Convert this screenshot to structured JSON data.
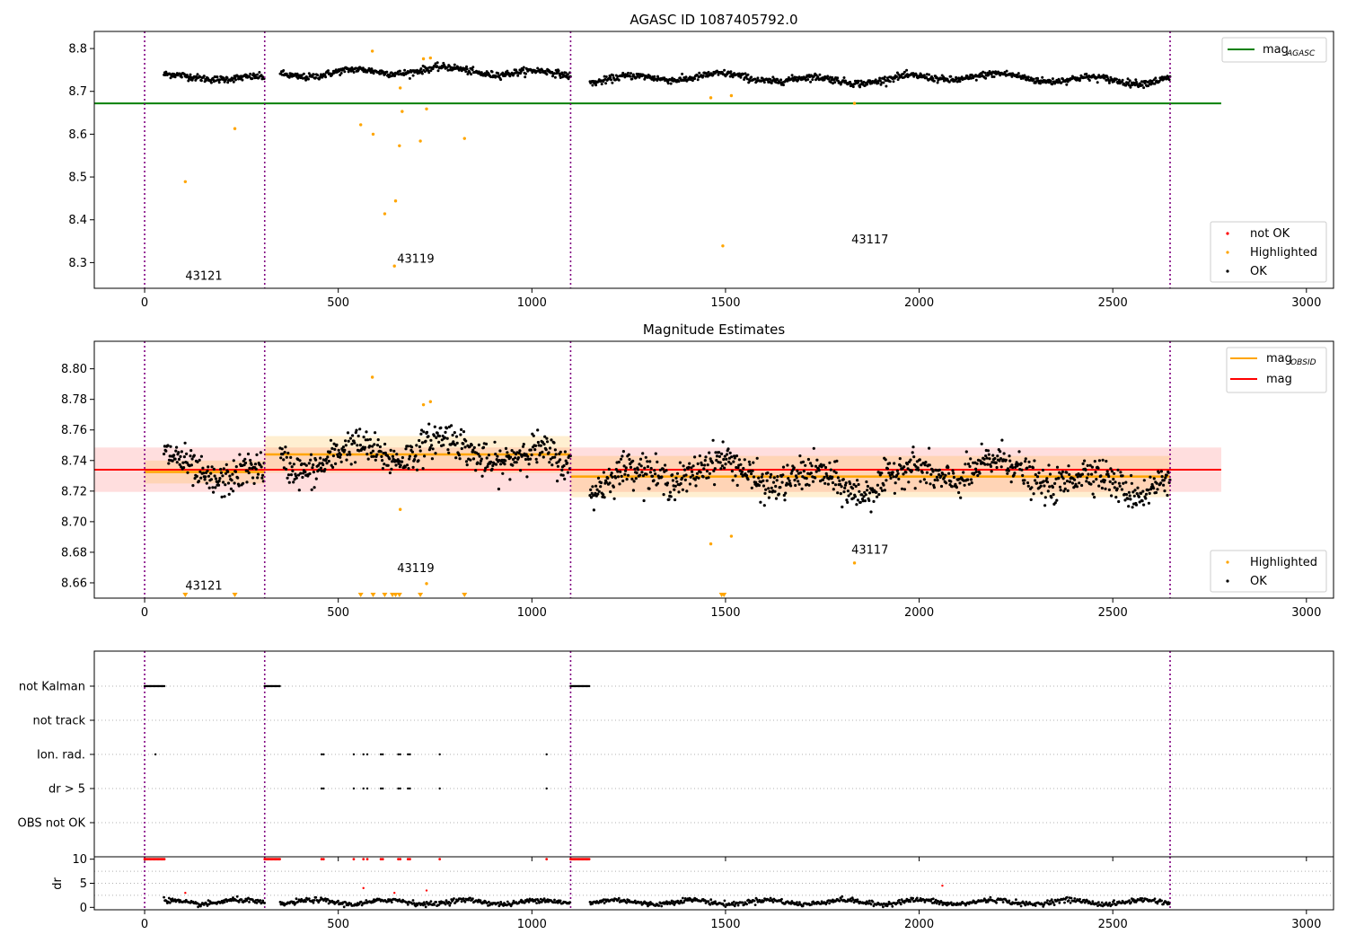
{
  "colors": {
    "ok": "#000000",
    "highlighted": "#ffa500",
    "not_ok": "#ff0000",
    "agasc_line": "#008000",
    "obs_line": "#ffa500",
    "mag_line": "#ff0000",
    "obs_band": "#ffa500",
    "mag_band": "#ff0000",
    "divider": "#800080"
  },
  "chart_data": [
    {
      "type": "scatter",
      "title": "AGASC ID 1087405792.0",
      "xlabel": "",
      "ylabel": "",
      "xlim": [
        -130,
        3070
      ],
      "ylim": [
        8.24,
        8.84
      ],
      "xticks": [
        "0",
        "500",
        "1000",
        "1500",
        "2000",
        "2500",
        "3000"
      ],
      "yticks": [
        "8.3",
        "8.4",
        "8.5",
        "8.6",
        "8.7",
        "8.8"
      ],
      "grid": false,
      "obs_dividers": [
        0,
        310,
        1100,
        2648
      ],
      "obsid_labels": [
        {
          "text": "43121",
          "x": 105,
          "y": 8.26
        },
        {
          "text": "43119",
          "x": 652,
          "y": 8.3
        },
        {
          "text": "43117",
          "x": 1825,
          "y": 8.345
        }
      ],
      "hlines": [
        {
          "name": "mag_AGASC",
          "y": 8.672,
          "x0": -130,
          "x1": 2780
        }
      ],
      "ok_segments": [
        {
          "x0": 50,
          "x1": 310,
          "base": 8.732,
          "amp": 0.008
        },
        {
          "x0": 350,
          "x1": 1100,
          "base": 8.745,
          "amp": 0.012
        },
        {
          "x0": 1150,
          "x1": 2648,
          "base": 8.73,
          "amp": 0.012
        }
      ],
      "highlighted_points": [
        {
          "x": 105,
          "y": 8.489
        },
        {
          "x": 233,
          "y": 8.613
        },
        {
          "x": 558,
          "y": 8.622
        },
        {
          "x": 588,
          "y": 8.794
        },
        {
          "x": 590,
          "y": 8.6
        },
        {
          "x": 620,
          "y": 8.414
        },
        {
          "x": 645,
          "y": 8.292
        },
        {
          "x": 648,
          "y": 8.444
        },
        {
          "x": 658,
          "y": 8.573
        },
        {
          "x": 660,
          "y": 8.708
        },
        {
          "x": 665,
          "y": 8.653
        },
        {
          "x": 712,
          "y": 8.584
        },
        {
          "x": 720,
          "y": 8.776
        },
        {
          "x": 728,
          "y": 8.659
        },
        {
          "x": 738,
          "y": 8.778
        },
        {
          "x": 826,
          "y": 8.59
        },
        {
          "x": 1462,
          "y": 8.685
        },
        {
          "x": 1493,
          "y": 8.339
        },
        {
          "x": 1515,
          "y": 8.69
        },
        {
          "x": 1833,
          "y": 8.672
        }
      ],
      "legend_position": "lower-right",
      "legend": [
        "not OK",
        "Highlighted",
        "OK"
      ],
      "legend_top": {
        "position": "upper-right",
        "label_main": "mag",
        "label_sub": "AGASC"
      }
    },
    {
      "type": "scatter",
      "title": "Magnitude Estimates",
      "xlabel": "",
      "ylabel": "",
      "xlim": [
        -130,
        3070
      ],
      "ylim": [
        8.65,
        8.818
      ],
      "xticks": [
        "0",
        "500",
        "1000",
        "1500",
        "2000",
        "2500",
        "3000"
      ],
      "yticks": [
        "8.66",
        "8.68",
        "8.70",
        "8.72",
        "8.74",
        "8.76",
        "8.78",
        "8.80"
      ],
      "grid": false,
      "obs_dividers": [
        0,
        310,
        1100,
        2648
      ],
      "obsid_labels": [
        {
          "text": "43121",
          "x": 105,
          "y": 8.6555
        },
        {
          "text": "43119",
          "x": 652,
          "y": 8.667
        },
        {
          "text": "43117",
          "x": 1825,
          "y": 8.679
        }
      ],
      "obs_means": [
        {
          "x0": 0,
          "x1": 310,
          "y": 8.7325,
          "lo": 8.725,
          "hi": 8.74
        },
        {
          "x0": 310,
          "x1": 1100,
          "y": 8.744,
          "lo": 8.732,
          "hi": 8.756
        },
        {
          "x0": 1100,
          "x1": 2648,
          "y": 8.7295,
          "lo": 8.716,
          "hi": 8.743
        }
      ],
      "mag": {
        "y": 8.734,
        "lo": 8.7195,
        "hi": 8.7485,
        "x0": -130,
        "x1": 2780
      },
      "highlighted_points": [
        {
          "x": 588,
          "y": 8.7945
        },
        {
          "x": 660,
          "y": 8.708
        },
        {
          "x": 720,
          "y": 8.7765
        },
        {
          "x": 728,
          "y": 8.6595
        },
        {
          "x": 738,
          "y": 8.7785
        },
        {
          "x": 1462,
          "y": 8.6855
        },
        {
          "x": 1515,
          "y": 8.6905
        },
        {
          "x": 1833,
          "y": 8.673
        }
      ],
      "lower_limit_markers": [
        105,
        233,
        558,
        590,
        620,
        640,
        648,
        658,
        712,
        826,
        1490,
        1496
      ],
      "legend_position": "lower-right",
      "legend": [
        "Highlighted",
        "OK"
      ],
      "legend_top": {
        "position": "upper-right",
        "items": [
          {
            "label_main": "mag",
            "label_sub": "OBSID"
          },
          {
            "label_main": "mag",
            "label_sub": ""
          }
        ]
      }
    },
    {
      "type": "scatter",
      "title": "",
      "xlabel": "",
      "ylabel": "",
      "xlim": [
        -130,
        3070
      ],
      "categories": [
        "not Kalman",
        "not track",
        "Ion. rad.",
        "dr > 5",
        "OBS not OK"
      ],
      "obs_dividers": [
        0,
        310,
        1100,
        2648
      ],
      "flag_runs": {
        "not Kalman": [
          [
            0,
            52
          ],
          [
            310,
            350
          ],
          [
            1100,
            1150
          ]
        ],
        "not track": [],
        "Ion. rad.": [],
        "dr > 5": [],
        "OBS not OK": []
      },
      "flag_points": {
        "Ion. rad.": [
          28,
          457,
          462,
          540,
          565,
          575,
          610,
          615,
          655,
          660,
          680,
          685,
          762,
          1038
        ],
        "dr > 5": [
          457,
          462,
          540,
          565,
          575,
          610,
          615,
          655,
          660,
          680,
          685,
          762,
          1038
        ]
      }
    },
    {
      "type": "scatter",
      "title": "",
      "xlabel": "",
      "ylabel": "dr",
      "xlim": [
        -130,
        3070
      ],
      "ylim": [
        -0.5,
        10.5
      ],
      "yticks": [
        "0",
        "5",
        "10"
      ],
      "obs_dividers": [
        0,
        310,
        1100,
        2648
      ],
      "capped_runs": [
        [
          0,
          52
        ],
        [
          310,
          350
        ],
        [
          1100,
          1150
        ]
      ],
      "capped_points": [
        457,
        462,
        540,
        565,
        575,
        610,
        615,
        655,
        660,
        680,
        685,
        762,
        1038
      ],
      "red_points": [
        {
          "x": 105,
          "y": 3.0
        },
        {
          "x": 565,
          "y": 4.0
        },
        {
          "x": 645,
          "y": 3.0
        },
        {
          "x": 728,
          "y": 3.5
        },
        {
          "x": 2060,
          "y": 4.5
        }
      ],
      "ok_segments": [
        {
          "x0": 50,
          "x1": 310
        },
        {
          "x0": 350,
          "x1": 1100
        },
        {
          "x0": 1150,
          "x1": 2648
        }
      ]
    }
  ]
}
